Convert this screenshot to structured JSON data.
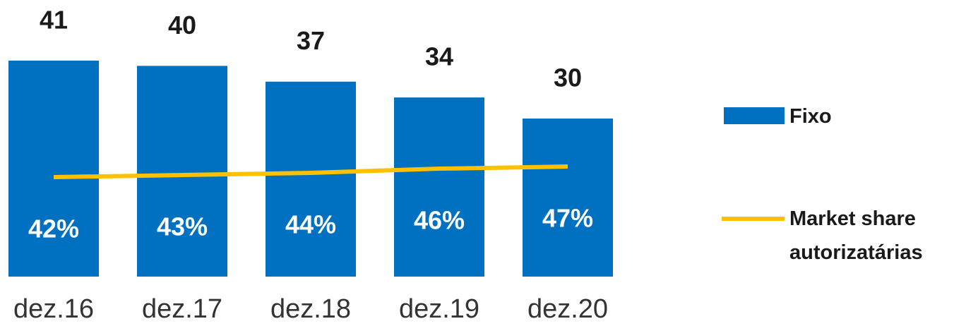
{
  "chart_data": {
    "type": "bar",
    "categories": [
      "dez.16",
      "dez.17",
      "dez.18",
      "dez.19",
      "dez.20"
    ],
    "series": [
      {
        "name": "Fixo",
        "type": "bar",
        "color": "#0070c0",
        "values": [
          41,
          40,
          37,
          34,
          30
        ]
      },
      {
        "name": "Market share autorizatárias",
        "type": "line",
        "axis": "y2",
        "color": "#ffc000",
        "values": [
          42,
          43,
          44,
          46,
          47
        ],
        "value_labels": [
          "42%",
          "43%",
          "44%",
          "46%",
          "47%"
        ]
      }
    ],
    "ylim": [
      0,
      52.5
    ],
    "y2lim": [
      -5,
      125.7
    ],
    "legend": "right"
  }
}
